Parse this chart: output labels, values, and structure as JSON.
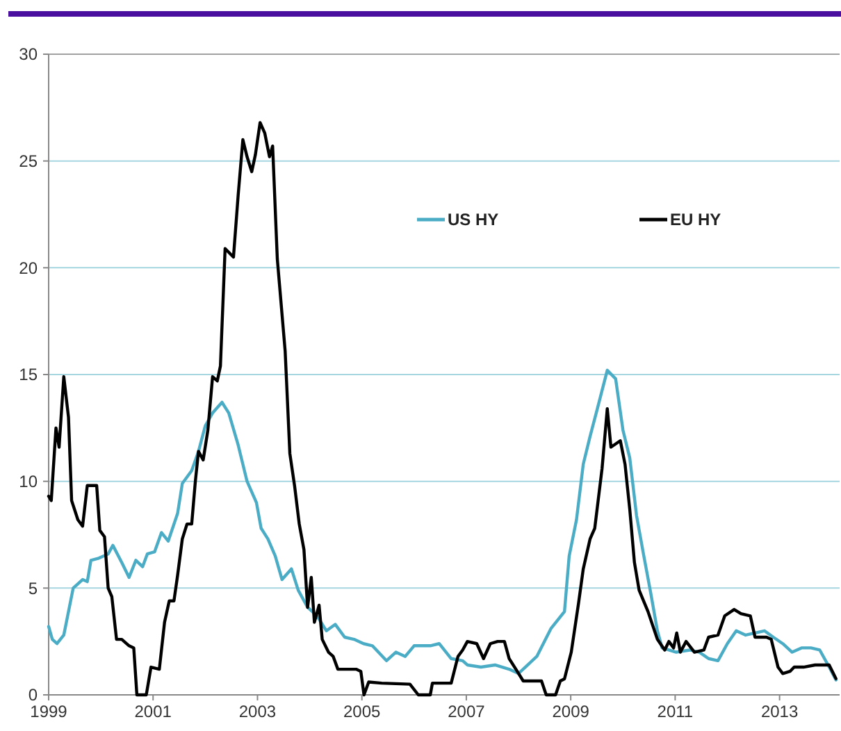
{
  "chart_data": {
    "type": "line",
    "xlim": [
      1999,
      2014.15
    ],
    "xticks": [
      1999,
      2001,
      2003,
      2005,
      2007,
      2009,
      2011,
      2013
    ],
    "ylim": [
      0,
      30
    ],
    "yticks": [
      0,
      5,
      10,
      15,
      20,
      25,
      30
    ],
    "grid": "y",
    "legend": "top right",
    "marker": "none",
    "line_style": "solid",
    "series": [
      {
        "name": "US HY",
        "color": "#4bacc6",
        "x": [
          1999.0,
          1999.07,
          1999.16,
          1999.29,
          1999.47,
          1999.65,
          1999.74,
          1999.81,
          1999.96,
          2000.14,
          2000.23,
          2000.4,
          2000.54,
          2000.67,
          2000.8,
          2000.89,
          2001.03,
          2001.16,
          2001.29,
          2001.47,
          2001.56,
          2001.74,
          2001.87,
          2002.0,
          2002.14,
          2002.32,
          2002.45,
          2002.63,
          2002.8,
          2002.98,
          2003.07,
          2003.2,
          2003.34,
          2003.47,
          2003.65,
          2003.78,
          2003.96,
          2004.14,
          2004.32,
          2004.49,
          2004.67,
          2004.85,
          2005.03,
          2005.2,
          2005.47,
          2005.65,
          2005.83,
          2006.0,
          2006.31,
          2006.48,
          2006.71,
          2006.93,
          2007.02,
          2007.28,
          2007.55,
          2007.82,
          2008.0,
          2008.13,
          2008.35,
          2008.62,
          2008.88,
          2008.97,
          2009.11,
          2009.24,
          2009.37,
          2009.51,
          2009.7,
          2009.86,
          2010.0,
          2010.13,
          2010.26,
          2010.4,
          2010.53,
          2010.66,
          2010.75,
          2011.02,
          2011.28,
          2011.46,
          2011.64,
          2011.82,
          2012.0,
          2012.17,
          2012.35,
          2012.53,
          2012.71,
          2012.88,
          2013.06,
          2013.24,
          2013.42,
          2013.6,
          2013.77,
          2013.95,
          2014.08
        ],
        "values": [
          3.2,
          2.6,
          2.4,
          2.8,
          5.0,
          5.4,
          5.3,
          6.3,
          6.4,
          6.6,
          7.0,
          6.2,
          5.5,
          6.3,
          6.0,
          6.6,
          6.7,
          7.6,
          7.2,
          8.5,
          9.9,
          10.5,
          11.4,
          12.6,
          13.2,
          13.7,
          13.2,
          11.7,
          10.0,
          9.0,
          7.8,
          7.3,
          6.5,
          5.4,
          5.9,
          4.9,
          4.1,
          3.7,
          3.0,
          3.3,
          2.7,
          2.6,
          2.4,
          2.3,
          1.6,
          2.0,
          1.8,
          2.3,
          2.3,
          2.4,
          1.7,
          1.6,
          1.4,
          1.3,
          1.4,
          1.2,
          1.0,
          1.3,
          1.8,
          3.1,
          3.9,
          6.5,
          8.2,
          10.8,
          12.1,
          13.4,
          15.2,
          14.8,
          12.4,
          11.1,
          8.4,
          6.5,
          4.8,
          3.0,
          2.2,
          2.0,
          2.1,
          2.0,
          1.7,
          1.6,
          2.4,
          3.0,
          2.8,
          2.9,
          3.0,
          2.7,
          2.4,
          2.0,
          2.2,
          2.2,
          2.1,
          1.3,
          0.7
        ]
      },
      {
        "name": "EU HY",
        "color": "#000000",
        "x": [
          1999.0,
          1999.05,
          1999.14,
          1999.2,
          1999.29,
          1999.38,
          1999.44,
          1999.56,
          1999.65,
          1999.74,
          1999.92,
          1999.98,
          2000.07,
          2000.14,
          2000.21,
          2000.3,
          2000.4,
          2000.54,
          2000.63,
          2000.69,
          2000.87,
          2000.96,
          2001.12,
          2001.22,
          2001.31,
          2001.4,
          2001.47,
          2001.56,
          2001.65,
          2001.74,
          2001.81,
          2001.87,
          2001.96,
          2002.05,
          2002.14,
          2002.23,
          2002.29,
          2002.38,
          2002.54,
          2002.63,
          2002.72,
          2002.8,
          2002.89,
          2002.96,
          2003.05,
          2003.14,
          2003.23,
          2003.29,
          2003.38,
          2003.53,
          2003.62,
          2003.71,
          2003.8,
          2003.89,
          2003.96,
          2004.03,
          2004.09,
          2004.18,
          2004.24,
          2004.36,
          2004.45,
          2004.54,
          2004.89,
          2004.98,
          2005.04,
          2005.13,
          2005.38,
          2005.92,
          2006.08,
          2006.31,
          2006.35,
          2006.71,
          2006.84,
          2006.93,
          2007.02,
          2007.2,
          2007.33,
          2007.46,
          2007.6,
          2007.73,
          2007.82,
          2007.95,
          2008.09,
          2008.44,
          2008.53,
          2008.71,
          2008.8,
          2008.88,
          2009.01,
          2009.15,
          2009.24,
          2009.37,
          2009.46,
          2009.6,
          2009.7,
          2009.77,
          2009.95,
          2010.04,
          2010.13,
          2010.22,
          2010.31,
          2010.48,
          2010.66,
          2010.8,
          2010.88,
          2010.97,
          2011.03,
          2011.1,
          2011.21,
          2011.37,
          2011.55,
          2011.64,
          2011.82,
          2011.95,
          2012.13,
          2012.26,
          2012.44,
          2012.53,
          2012.75,
          2012.84,
          2012.97,
          2013.06,
          2013.2,
          2013.28,
          2013.46,
          2013.68,
          2013.95,
          2014.08
        ],
        "values": [
          9.3,
          9.1,
          12.5,
          11.6,
          14.9,
          13.0,
          9.1,
          8.2,
          7.9,
          9.8,
          9.8,
          7.7,
          7.4,
          5.0,
          4.6,
          2.6,
          2.6,
          2.3,
          2.2,
          0,
          0,
          1.3,
          1.2,
          3.4,
          4.4,
          4.4,
          5.6,
          7.3,
          8.0,
          8.0,
          10.0,
          11.4,
          11.0,
          12.4,
          14.9,
          14.7,
          15.4,
          20.9,
          20.5,
          23.4,
          26.0,
          25.2,
          24.5,
          25.3,
          26.8,
          26.3,
          25.2,
          25.7,
          20.4,
          16.1,
          11.3,
          9.8,
          8.0,
          6.8,
          4.1,
          5.5,
          3.4,
          4.2,
          2.6,
          2.0,
          1.8,
          1.2,
          1.2,
          1.1,
          0,
          0.6,
          0.55,
          0.5,
          0,
          0,
          0.55,
          0.55,
          1.8,
          2.1,
          2.5,
          2.4,
          1.7,
          2.4,
          2.5,
          2.5,
          1.7,
          1.2,
          0.65,
          0.65,
          0,
          0,
          0.65,
          0.75,
          2.0,
          4.3,
          5.9,
          7.3,
          7.8,
          10.6,
          13.4,
          11.6,
          11.9,
          10.8,
          8.7,
          6.2,
          4.9,
          3.9,
          2.6,
          2.1,
          2.5,
          2.2,
          2.9,
          2.0,
          2.5,
          2.0,
          2.1,
          2.7,
          2.8,
          3.7,
          4.0,
          3.8,
          3.7,
          2.7,
          2.7,
          2.6,
          1.3,
          1.0,
          1.1,
          1.3,
          1.3,
          1.4,
          1.4,
          0.76
        ]
      }
    ]
  }
}
